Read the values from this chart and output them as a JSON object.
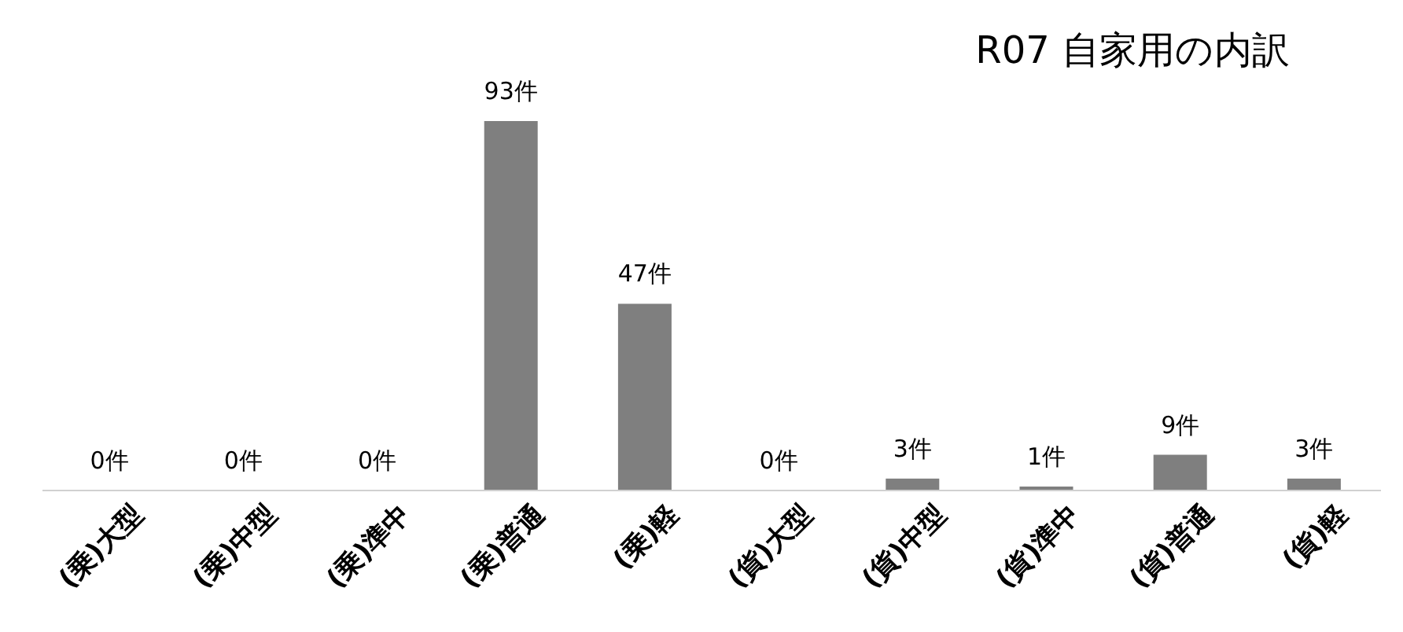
{
  "chart_data": {
    "type": "bar",
    "title": "R07 自家用の内訳",
    "categories": [
      "(乗)大型",
      "(乗)中型",
      "(乗)準中",
      "(乗)普通",
      "(乗)軽",
      "(貨)大型",
      "(貨)中型",
      "(貨)準中",
      "(貨)普通",
      "(貨)軽"
    ],
    "values": [
      0,
      0,
      0,
      93,
      47,
      0,
      3,
      1,
      9,
      3
    ],
    "value_labels": [
      "0件",
      "0件",
      "0件",
      "93件",
      "47件",
      "0件",
      "3件",
      "1件",
      "9件",
      "3件"
    ],
    "color": "#7f7f7f"
  }
}
